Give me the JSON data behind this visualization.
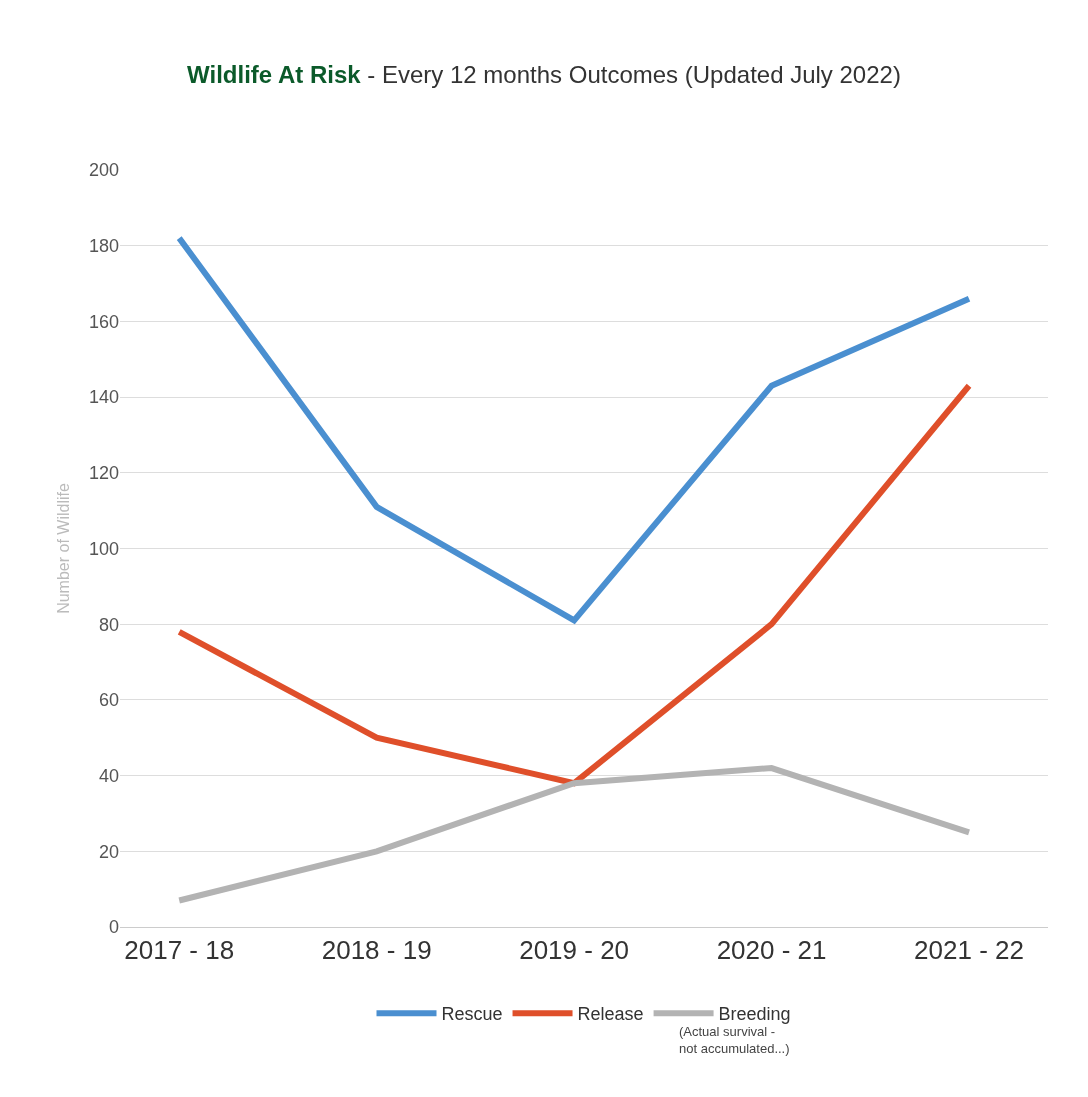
{
  "chart_data": {
    "type": "line",
    "title": "Wildlife At Risk",
    "subtitle": "- Every 12 months Outcomes (Updated July 2022)",
    "ylabel": "Number of Wildlife",
    "categories": [
      "2017 - 18",
      "2018 - 19",
      "2019 - 20",
      "2020 - 21",
      "2021 - 22"
    ],
    "series": [
      {
        "name": "Rescue",
        "color": "#4a8fd0",
        "values": [
          182,
          111,
          81,
          143,
          166
        ]
      },
      {
        "name": "Release",
        "color": "#df4f2a",
        "values": [
          78,
          50,
          38,
          80,
          143
        ]
      },
      {
        "name": "Breeding",
        "color": "#b3b3b3",
        "values": [
          7,
          20,
          38,
          42,
          25
        ]
      }
    ],
    "ylim": [
      0,
      200
    ],
    "yticks": [
      0,
      20,
      40,
      60,
      80,
      100,
      120,
      140,
      160,
      180,
      200
    ],
    "grid": "y",
    "legend": "bottom",
    "marker": "none",
    "line_style": "solid",
    "annotations": [
      "(Actual survival -\nnot accumulated...)"
    ]
  }
}
